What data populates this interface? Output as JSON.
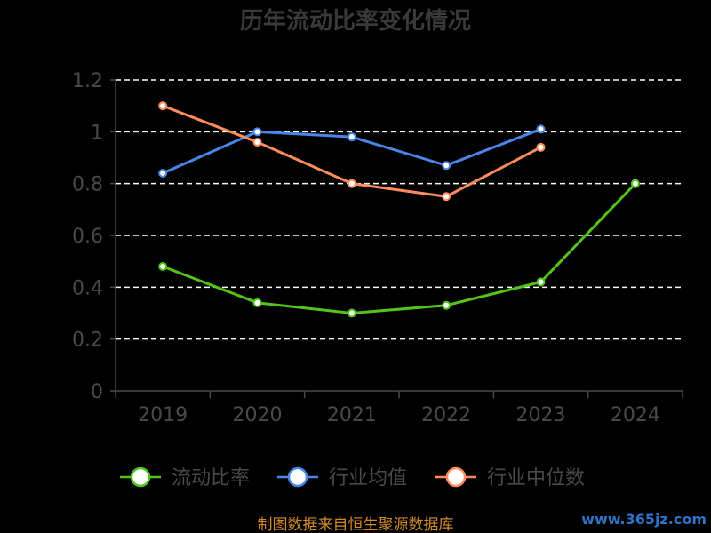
{
  "chart_data": {
    "type": "line",
    "title": "历年流动比率变化情况",
    "categories": [
      "2019",
      "2020",
      "2021",
      "2022",
      "2023",
      "2024"
    ],
    "ylim": [
      0,
      1.2
    ],
    "yticks": [
      "0",
      "0.2",
      "0.4",
      "0.6",
      "0.8",
      "1",
      "1.2"
    ],
    "grid": true,
    "legend_position": "bottom",
    "series": [
      {
        "name": "流动比率",
        "color": "#52c41a",
        "values": [
          0.48,
          0.34,
          0.3,
          0.33,
          0.42,
          0.8
        ]
      },
      {
        "name": "行业均值",
        "color": "#4a86e8",
        "values": [
          0.84,
          1.0,
          0.98,
          0.87,
          1.01,
          null
        ]
      },
      {
        "name": "行业中位数",
        "color": "#ff8c5a",
        "values": [
          1.1,
          0.96,
          0.8,
          0.75,
          0.94,
          null
        ]
      }
    ]
  },
  "footer": {
    "source": "制图数据来自恒生聚源数据库",
    "watermark": "www.365jz.com"
  }
}
